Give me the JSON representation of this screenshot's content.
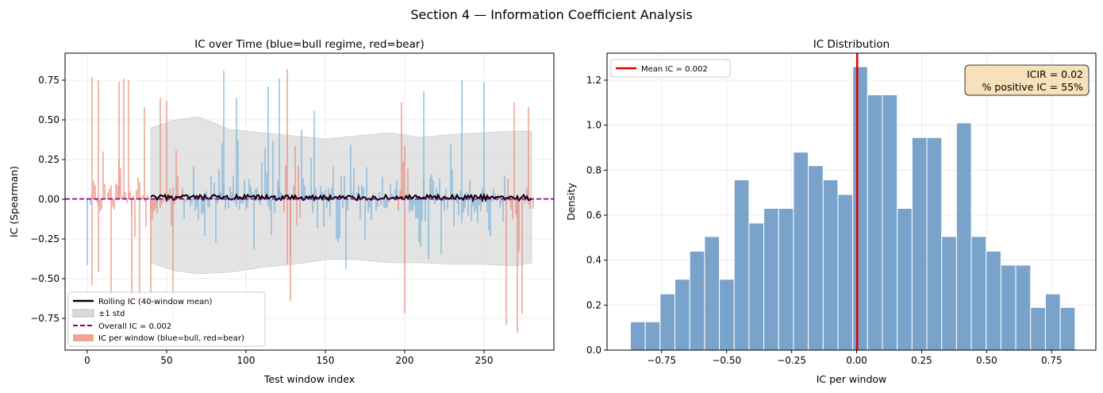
{
  "figure": {
    "suptitle": "Section 4 — Information Coefficient Analysis"
  },
  "chart_data": [
    {
      "type": "bar",
      "title": "IC over Time (blue=bull regime, red=bear)",
      "xlabel": "Test window index",
      "ylabel": "IC (Spearman)",
      "xlim": [
        -14,
        294
      ],
      "ylim": [
        -0.95,
        0.92
      ],
      "xticks": [
        0,
        50,
        100,
        150,
        200,
        250
      ],
      "yticks": [
        -0.75,
        -0.5,
        -0.25,
        0.0,
        0.25,
        0.5,
        0.75
      ],
      "grid": true,
      "legend_position": "lower-left",
      "legend": [
        "Rolling IC (40-window mean)",
        "±1 std",
        "Overall IC = 0.002",
        "IC per window (blue=bull, red=bear)"
      ],
      "colors": {
        "bull": "#6baed6",
        "bear": "#e8826f",
        "band": "#d9d9d9",
        "rolling": "#000000",
        "overall": "#800080"
      },
      "overall_ic": 0.002,
      "bear_windows": [
        [
          3,
          60
        ],
        [
          124,
          134
        ],
        [
          196,
          202
        ],
        [
          264,
          281
        ]
      ],
      "bar_ic_sample": [
        {
          "x": 3,
          "y": 0.77
        },
        {
          "x": 7,
          "y": 0.75
        },
        {
          "x": 3,
          "y": -0.54
        },
        {
          "x": 7,
          "y": -0.46
        },
        {
          "x": 15,
          "y": -0.6
        },
        {
          "x": 20,
          "y": 0.74
        },
        {
          "x": 23,
          "y": 0.76
        },
        {
          "x": 26,
          "y": 0.75
        },
        {
          "x": 28,
          "y": -0.7
        },
        {
          "x": 33,
          "y": -0.7
        },
        {
          "x": 36,
          "y": 0.58
        },
        {
          "x": 40,
          "y": -0.7
        },
        {
          "x": 46,
          "y": 0.64
        },
        {
          "x": 50,
          "y": 0.62
        },
        {
          "x": 54,
          "y": -0.78
        },
        {
          "x": 86,
          "y": 0.81
        },
        {
          "x": 94,
          "y": 0.64
        },
        {
          "x": 114,
          "y": 0.71
        },
        {
          "x": 121,
          "y": 0.76
        },
        {
          "x": 126,
          "y": 0.82
        },
        {
          "x": 128,
          "y": -0.64
        },
        {
          "x": 198,
          "y": 0.61
        },
        {
          "x": 200,
          "y": -0.72
        },
        {
          "x": 212,
          "y": 0.68
        },
        {
          "x": 236,
          "y": 0.75
        },
        {
          "x": 250,
          "y": 0.74
        },
        {
          "x": 264,
          "y": -0.79
        },
        {
          "x": 269,
          "y": 0.61
        },
        {
          "x": 271,
          "y": -0.84
        },
        {
          "x": 274,
          "y": -0.72
        },
        {
          "x": 278,
          "y": 0.58
        }
      ],
      "rolling_mean_range": [
        40,
        280
      ],
      "rolling_mean_level": 0.01,
      "std_band": {
        "x": [
          40,
          55,
          70,
          90,
          110,
          130,
          150,
          170,
          190,
          210,
          230,
          250,
          270,
          280
        ],
        "upper": [
          0.45,
          0.5,
          0.52,
          0.44,
          0.42,
          0.4,
          0.38,
          0.4,
          0.42,
          0.39,
          0.41,
          0.42,
          0.43,
          0.43
        ],
        "lower": [
          -0.4,
          -0.45,
          -0.47,
          -0.46,
          -0.43,
          -0.41,
          -0.38,
          -0.38,
          -0.4,
          -0.4,
          -0.41,
          -0.41,
          -0.42,
          -0.4
        ]
      }
    },
    {
      "type": "bar",
      "title": "IC Distribution",
      "xlabel": "IC per window",
      "ylabel": "Density",
      "xlim": [
        -0.96,
        0.92
      ],
      "ylim": [
        0,
        1.32
      ],
      "xticks": [
        -0.75,
        -0.5,
        -0.25,
        0.0,
        0.25,
        0.5,
        0.75
      ],
      "yticks": [
        0.0,
        0.2,
        0.4,
        0.6,
        0.8,
        1.0,
        1.2
      ],
      "grid": true,
      "legend_position": "top-left",
      "legend": [
        "Mean IC = 0.002"
      ],
      "colors": {
        "bars": "#5b8fbf",
        "mean": "#e00000"
      },
      "mean_ic": 0.002,
      "bin_edges": [
        -0.87,
        -0.813,
        -0.756,
        -0.699,
        -0.642,
        -0.585,
        -0.528,
        -0.471,
        -0.414,
        -0.357,
        -0.3,
        -0.243,
        -0.186,
        -0.129,
        -0.072,
        -0.015,
        0.042,
        0.099,
        0.156,
        0.213,
        0.27,
        0.327,
        0.384,
        0.441,
        0.498,
        0.555,
        0.612,
        0.669,
        0.726,
        0.783,
        0.84
      ],
      "density": [
        0.126,
        0.126,
        0.25,
        0.315,
        0.44,
        0.505,
        0.315,
        0.757,
        0.565,
        0.63,
        0.63,
        0.88,
        0.82,
        0.757,
        0.692,
        1.26,
        1.135,
        1.135,
        0.63,
        0.945,
        0.945,
        0.505,
        1.01,
        0.505,
        0.44,
        0.378,
        0.378,
        0.19,
        0.25,
        0.19
      ],
      "annotation": [
        "ICIR = 0.02",
        "% positive IC = 55%"
      ]
    }
  ]
}
